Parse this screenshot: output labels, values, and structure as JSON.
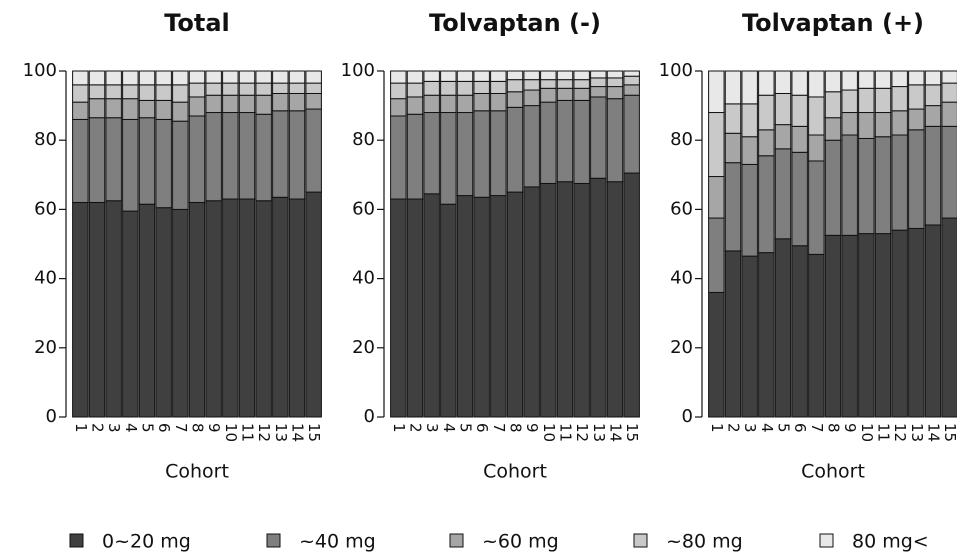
{
  "chart_data": [
    {
      "type": "bar",
      "stacked": true,
      "title": "Total",
      "x_label": "Cohort",
      "categories": [
        "1",
        "2",
        "3",
        "4",
        "5",
        "6",
        "7",
        "8",
        "9",
        "10",
        "11",
        "12",
        "13",
        "14",
        "15"
      ],
      "ylim": [
        0,
        100
      ],
      "yticks": [
        0,
        20,
        40,
        60,
        80,
        100
      ],
      "series": [
        {
          "name": "0~20 mg",
          "color": "#404040",
          "values": [
            62,
            62,
            62.5,
            59.5,
            61.5,
            60.5,
            60,
            62,
            62.5,
            63,
            63,
            62.5,
            63.5,
            63,
            65
          ]
        },
        {
          "name": "~40 mg",
          "color": "#7f7f7f",
          "values": [
            24,
            24.5,
            24,
            26.5,
            25,
            25.5,
            25.5,
            25,
            25.5,
            25,
            25,
            25,
            25,
            25.5,
            24
          ]
        },
        {
          "name": "~60 mg",
          "color": "#a6a6a6",
          "values": [
            5,
            5.5,
            5.5,
            6,
            5,
            5.5,
            5.5,
            5.5,
            5,
            5,
            5,
            5.5,
            5,
            5,
            4.5
          ]
        },
        {
          "name": "~80 mg",
          "color": "#c9c9c9",
          "values": [
            5,
            4,
            4,
            4,
            4.5,
            4.5,
            5,
            4,
            3.5,
            3.5,
            3.5,
            3.5,
            3,
            3,
            3
          ]
        },
        {
          "name": "80 mg<",
          "color": "#e8e8e8",
          "values": [
            4,
            4,
            4,
            4,
            4,
            4,
            4,
            3.5,
            3.5,
            3.5,
            3.5,
            3.5,
            3.5,
            3.5,
            3.5
          ]
        }
      ]
    },
    {
      "type": "bar",
      "stacked": true,
      "title": "Tolvaptan (-)",
      "x_label": "Cohort",
      "categories": [
        "1",
        "2",
        "3",
        "4",
        "5",
        "6",
        "7",
        "8",
        "9",
        "10",
        "11",
        "12",
        "13",
        "14",
        "15"
      ],
      "ylim": [
        0,
        100
      ],
      "yticks": [
        0,
        20,
        40,
        60,
        80,
        100
      ],
      "series": [
        {
          "name": "0~20 mg",
          "color": "#404040",
          "values": [
            63,
            63,
            64.5,
            61.5,
            64,
            63.5,
            64,
            65,
            66.5,
            67.5,
            68,
            67.5,
            69,
            68,
            70.5
          ]
        },
        {
          "name": "~40 mg",
          "color": "#7f7f7f",
          "values": [
            24,
            24.5,
            23.5,
            26.5,
            24,
            25,
            24.5,
            24.5,
            23.5,
            23.5,
            23.5,
            24,
            23.5,
            24,
            22.5
          ]
        },
        {
          "name": "~60 mg",
          "color": "#a6a6a6",
          "values": [
            5,
            5,
            5,
            5,
            5,
            5,
            5,
            4.5,
            4.5,
            4,
            3.5,
            3.5,
            3,
            3.5,
            3
          ]
        },
        {
          "name": "~80 mg",
          "color": "#c9c9c9",
          "values": [
            4.5,
            4,
            4,
            4,
            4,
            3.5,
            3.5,
            3.5,
            3,
            2.5,
            2.5,
            2.5,
            2.5,
            2.5,
            2.5
          ]
        },
        {
          "name": "80 mg<",
          "color": "#e8e8e8",
          "values": [
            3.5,
            3.5,
            3,
            3,
            3,
            3,
            3,
            2.5,
            2.5,
            2.5,
            2.5,
            2.5,
            2,
            2,
            1.5
          ]
        }
      ]
    },
    {
      "type": "bar",
      "stacked": true,
      "title": "Tolvaptan (+)",
      "x_label": "Cohort",
      "categories": [
        "1",
        "2",
        "3",
        "4",
        "5",
        "6",
        "7",
        "8",
        "9",
        "10",
        "11",
        "12",
        "13",
        "14",
        "15"
      ],
      "ylim": [
        0,
        100
      ],
      "yticks": [
        0,
        20,
        40,
        60,
        80,
        100
      ],
      "series": [
        {
          "name": "0~20 mg",
          "color": "#404040",
          "values": [
            36,
            48,
            46.5,
            47.5,
            51.5,
            49.5,
            47,
            52.5,
            52.5,
            53,
            53,
            54,
            54.5,
            55.5,
            57.5
          ]
        },
        {
          "name": "~40 mg",
          "color": "#7f7f7f",
          "values": [
            21.5,
            25.5,
            26.5,
            28,
            26,
            27,
            27,
            27.5,
            29,
            27.5,
            28,
            27.5,
            28.5,
            28.5,
            26.5
          ]
        },
        {
          "name": "~60 mg",
          "color": "#a6a6a6",
          "values": [
            12,
            8.5,
            8,
            7.5,
            7,
            7.5,
            7.5,
            6.5,
            6.5,
            7.5,
            7,
            7,
            6,
            6,
            7
          ]
        },
        {
          "name": "~80 mg",
          "color": "#c9c9c9",
          "values": [
            18.5,
            8.5,
            9.5,
            10,
            9,
            9,
            11,
            7.5,
            6.5,
            7,
            7,
            7,
            7,
            6,
            5.5
          ]
        },
        {
          "name": "80 mg<",
          "color": "#e8e8e8",
          "values": [
            12,
            9.5,
            9.5,
            7,
            6.5,
            7,
            7.5,
            6,
            5.5,
            5,
            5,
            4.5,
            4,
            4,
            3.5
          ]
        }
      ]
    }
  ]
}
